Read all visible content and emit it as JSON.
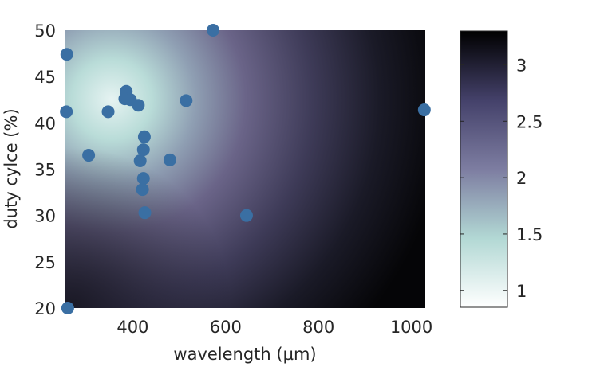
{
  "chart_data": {
    "type": "scatter",
    "background": "heatmap",
    "title": "",
    "xlabel": "wavelength (µm)",
    "ylabel": "duty cylce (%)",
    "xlim": [
      255,
      1030
    ],
    "ylim": [
      20,
      50
    ],
    "x_ticks": [
      400,
      600,
      800,
      1000
    ],
    "x_tick_labels": [
      "400",
      "600",
      "800",
      "1000"
    ],
    "y_ticks": [
      20,
      25,
      30,
      35,
      40,
      45,
      50
    ],
    "y_tick_labels": [
      "20",
      "25",
      "30",
      "35",
      "40",
      "45",
      "50"
    ],
    "grid": false,
    "marker_color": "#3a6fa3",
    "points": [
      {
        "x": 258,
        "y": 47.4
      },
      {
        "x": 257,
        "y": 41.2
      },
      {
        "x": 260,
        "y": 20.0
      },
      {
        "x": 305,
        "y": 36.5
      },
      {
        "x": 347,
        "y": 41.2
      },
      {
        "x": 386,
        "y": 43.4
      },
      {
        "x": 383,
        "y": 42.6
      },
      {
        "x": 395,
        "y": 42.5
      },
      {
        "x": 412,
        "y": 41.9
      },
      {
        "x": 416,
        "y": 35.9
      },
      {
        "x": 425,
        "y": 38.5
      },
      {
        "x": 423,
        "y": 37.1
      },
      {
        "x": 423,
        "y": 34.0
      },
      {
        "x": 421,
        "y": 32.8
      },
      {
        "x": 426,
        "y": 30.3
      },
      {
        "x": 480,
        "y": 36.0
      },
      {
        "x": 515,
        "y": 42.4
      },
      {
        "x": 573,
        "y": 50.0
      },
      {
        "x": 645,
        "y": 30.0
      },
      {
        "x": 1028,
        "y": 41.4
      }
    ],
    "colorbar": {
      "min": 0.85,
      "max": 3.3,
      "ticks": [
        1,
        1.5,
        2,
        2.5,
        3
      ],
      "tick_labels": [
        "1",
        "1.5",
        "2",
        "2.5",
        "3"
      ],
      "colors": [
        "#ffffff",
        "#a7d1ce",
        "#7f7fa3",
        "#47446a",
        "#000000"
      ]
    }
  }
}
